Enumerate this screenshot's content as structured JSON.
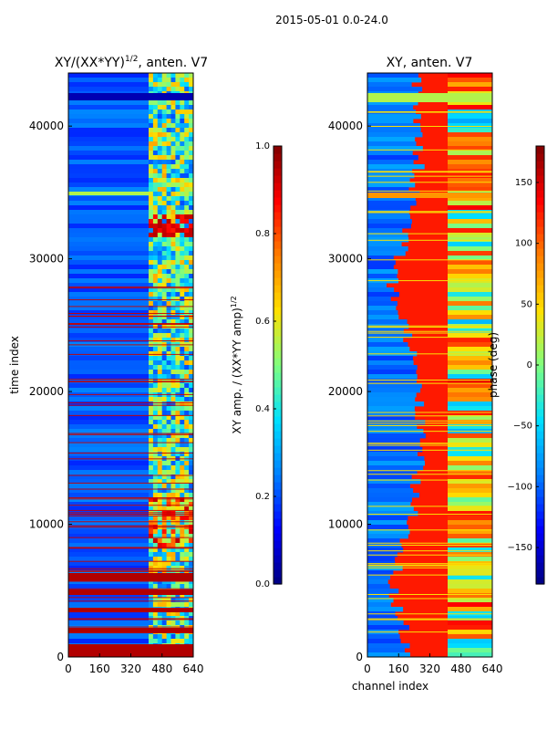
{
  "suptitle": "2015-05-01 0.0-24.0",
  "x_label": "channel index",
  "colormap": [
    "#00007f",
    "#0000ff",
    "#0080ff",
    "#00e0ff",
    "#7fff7f",
    "#ffe000",
    "#ff7f00",
    "#ff0000",
    "#7f0000"
  ],
  "chart_data": [
    {
      "id": "amplitude",
      "type": "heatmap",
      "title": "XY/(XX*YY)",
      "title_exponent": "1/2",
      "title_suffix": ", anten. V7",
      "xlabel": "",
      "ylabel": "time index",
      "xlim": [
        0,
        640
      ],
      "ylim": [
        0,
        44000
      ],
      "x_ticks": [
        "0",
        "160",
        "320",
        "480",
        "640"
      ],
      "x_tick_values": [
        0,
        160,
        320,
        480,
        640
      ],
      "y_ticks": [
        "0",
        "10000",
        "20000",
        "30000",
        "40000"
      ],
      "y_tick_values": [
        0,
        10000,
        20000,
        30000,
        40000
      ],
      "colorbar": {
        "label": "XY amp. / (XX*YY amp)",
        "label_exponent": "1/2",
        "range": [
          0.0,
          1.0
        ],
        "ticks": [
          "0.0",
          "0.2",
          "0.4",
          "0.6",
          "0.8",
          "1.0"
        ],
        "tick_values": [
          0.0,
          0.2,
          0.4,
          0.6,
          0.8,
          1.0
        ]
      }
    },
    {
      "id": "phase",
      "type": "heatmap",
      "title": "XY, anten. V7",
      "xlabel": "channel index",
      "ylabel": "",
      "xlim": [
        0,
        640
      ],
      "ylim": [
        0,
        44000
      ],
      "x_ticks": [
        "0",
        "160",
        "320",
        "480",
        "640"
      ],
      "x_tick_values": [
        0,
        160,
        320,
        480,
        640
      ],
      "y_ticks": [
        "0",
        "10000",
        "20000",
        "30000",
        "40000"
      ],
      "y_tick_values": [
        0,
        10000,
        20000,
        30000,
        40000
      ],
      "colorbar": {
        "label": "phase (deg)",
        "range": [
          -180,
          180
        ],
        "ticks": [
          "−150",
          "−100",
          "−50",
          "0",
          "50",
          "100",
          "150"
        ],
        "tick_values": [
          -150,
          -100,
          -50,
          0,
          50,
          100,
          150
        ]
      }
    }
  ]
}
